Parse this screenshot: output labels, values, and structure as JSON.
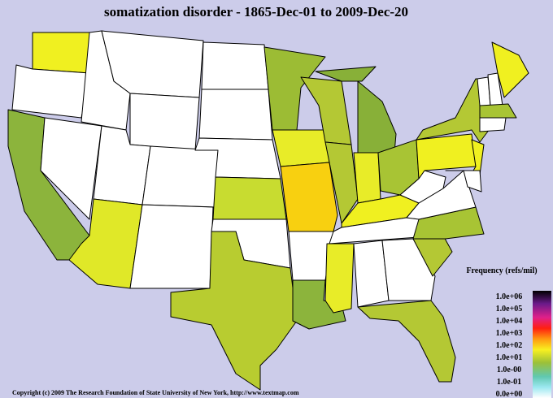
{
  "title": "somatization disorder - 1865-Dec-01 to 2009-Dec-20",
  "legend": {
    "title": "Frequency (refs/mil)",
    "labels": [
      "1.0e+06",
      "1.0e+05",
      "1.0e+04",
      "1.0e+03",
      "1.0e+02",
      "1.0e+01",
      "1.0e-00",
      "1.0e-01",
      "0.0e+00"
    ]
  },
  "copyright": "Copyright (c) 2009 The Research Foundation of State University of New York, http://www.textmap.com"
}
